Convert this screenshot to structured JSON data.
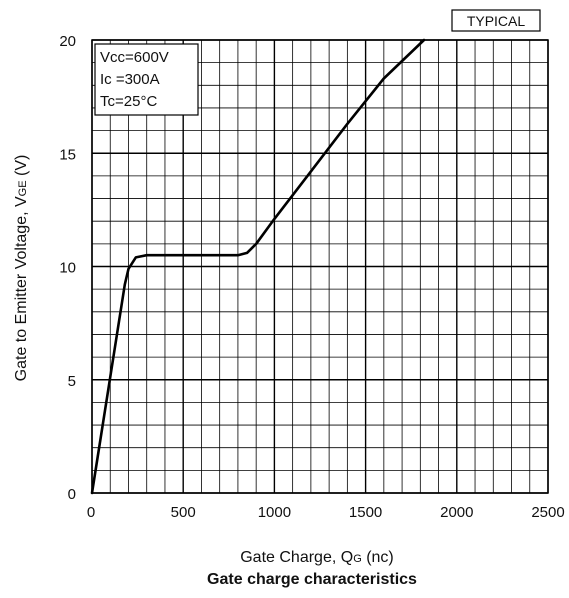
{
  "chart_data": {
    "type": "line",
    "badge": "TYPICAL",
    "caption": "Gate charge characteristics",
    "xlabel_main": "Gate Charge, Q",
    "xlabel_sub": "G",
    "xlabel_unit": " (nc)",
    "ylabel_main": "Gate to Emitter Voltage, V",
    "ylabel_sub": "GE",
    "ylabel_unit": " (V)",
    "xlim": [
      0,
      2500
    ],
    "ylim": [
      0,
      20
    ],
    "x_ticks": [
      {
        "value": 0,
        "label": "0"
      },
      {
        "value": 500,
        "label": "500"
      },
      {
        "value": 1000,
        "label": "1000"
      },
      {
        "value": 1500,
        "label": "1500"
      },
      {
        "value": 2000,
        "label": "2000"
      },
      {
        "value": 2500,
        "label": "2500"
      }
    ],
    "y_ticks": [
      {
        "value": 0,
        "label": "0"
      },
      {
        "value": 5,
        "label": "5"
      },
      {
        "value": 10,
        "label": "10"
      },
      {
        "value": 15,
        "label": "15"
      },
      {
        "value": 20,
        "label": "20"
      }
    ],
    "grid": true,
    "conditions": [
      "Vcc=600V",
      "Ic =300A",
      "Tc=25°C"
    ],
    "series": [
      {
        "x": [
          0,
          180,
          200,
          240,
          300,
          500,
          800,
          850,
          900,
          1000,
          1200,
          1400,
          1600,
          1820
        ],
        "y": [
          0,
          9.2,
          9.9,
          10.4,
          10.5,
          10.5,
          10.5,
          10.6,
          11.0,
          12.1,
          14.2,
          16.3,
          18.3,
          20.0
        ]
      }
    ]
  }
}
